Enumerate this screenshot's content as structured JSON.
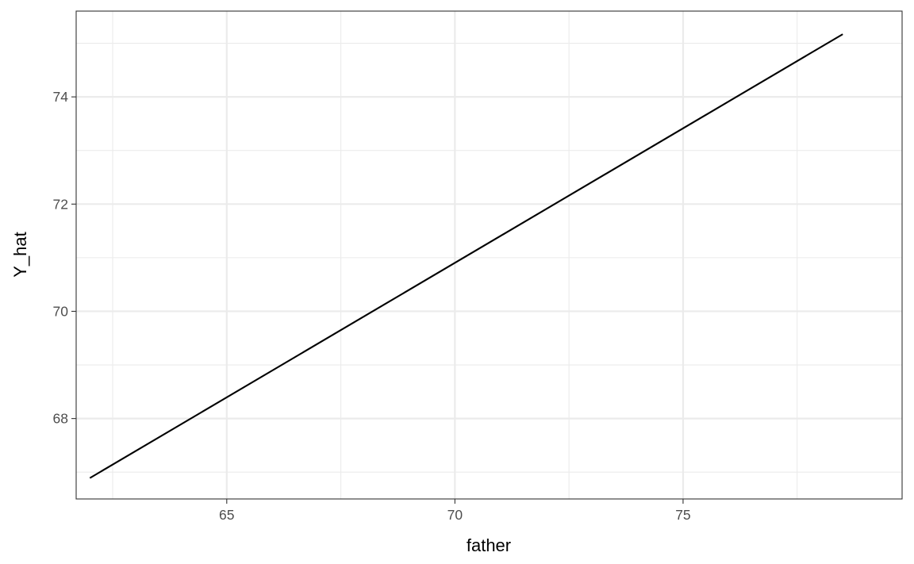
{
  "chart_data": {
    "type": "line",
    "title": "",
    "xlabel": "father",
    "ylabel": "Y_hat",
    "xlim": [
      61.7,
      79.8
    ],
    "ylim": [
      66.5,
      75.6
    ],
    "x_ticks": [
      65,
      70,
      75
    ],
    "x_minor_ticks": [
      62.5,
      67.5,
      72.5,
      77.5
    ],
    "y_ticks": [
      68,
      70,
      72,
      74
    ],
    "y_minor_ticks": [
      67,
      69,
      71,
      73,
      75
    ],
    "x_tick_labels": [
      "65",
      "70",
      "75"
    ],
    "y_tick_labels": [
      "68",
      "70",
      "72",
      "74"
    ],
    "grid": true,
    "legend": "none",
    "series": [
      {
        "x": [
          62.0,
          78.5
        ],
        "y": [
          66.89,
          75.17
        ],
        "color": "#000000"
      }
    ]
  }
}
